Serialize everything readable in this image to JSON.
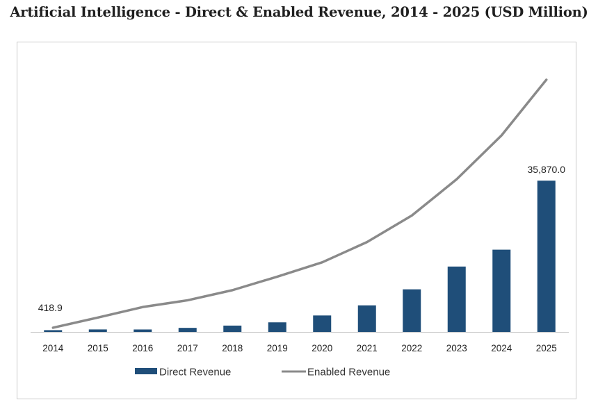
{
  "title": "Artificial Intelligence - Direct & Enabled Revenue, 2014 - 2025 (USD Million)",
  "colors": {
    "direct": "#1f4e79",
    "enabled": "#8a8a8a",
    "frame": "#c9c9c9"
  },
  "chart_data": {
    "type": "bar",
    "title": "Artificial Intelligence - Direct & Enabled Revenue, 2014 - 2025 (USD Million)",
    "categories": [
      "2014",
      "2015",
      "2016",
      "2017",
      "2018",
      "2019",
      "2020",
      "2021",
      "2022",
      "2023",
      "2024",
      "2025"
    ],
    "series": [
      {
        "name": "Direct Revenue",
        "type": "bar",
        "values": [
          418.9,
          590,
          580,
          960,
          1500,
          2270,
          3900,
          6300,
          10100,
          15500,
          19500,
          35870.0
        ]
      },
      {
        "name": "Enabled Revenue",
        "type": "line",
        "values": [
          1000,
          3400,
          5900,
          7500,
          9900,
          13100,
          16500,
          21300,
          27600,
          36200,
          46600,
          59800
        ]
      }
    ],
    "data_labels": [
      {
        "category": "2014",
        "text": "418.9"
      },
      {
        "category": "2025",
        "text": "35,870.0"
      }
    ],
    "ylim": [
      0,
      68000
    ],
    "grid": false,
    "legend": "bottom-center",
    "xlabel": "",
    "ylabel": ""
  }
}
